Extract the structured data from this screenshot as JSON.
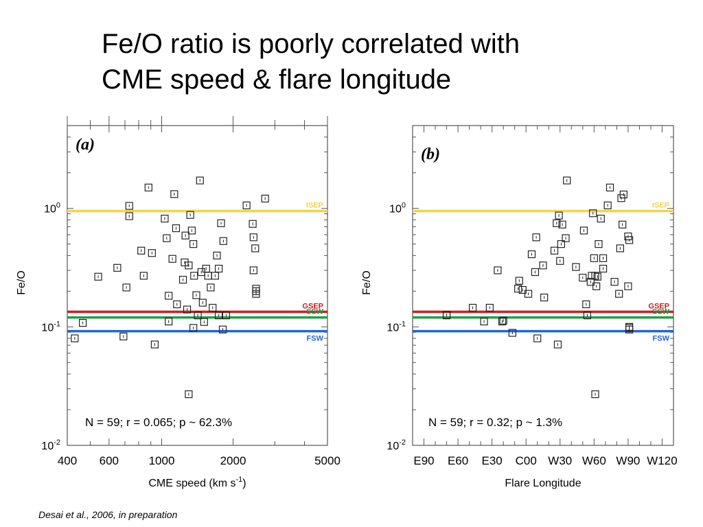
{
  "slide": {
    "title_line1": "Fe/O ratio is poorly correlated with",
    "title_line2": "CME speed & flare longitude",
    "citation": "Desai et al., 2006, in preparation"
  },
  "reference_lines": [
    {
      "name": "ISEP",
      "value": 0.95,
      "color": "#f5d24a"
    },
    {
      "name": "GSEP",
      "value": 0.134,
      "color": "#cc1f1f"
    },
    {
      "name": "SSW",
      "value": 0.12,
      "color": "#1f9e4a"
    },
    {
      "name": "FSW",
      "value": 0.092,
      "color": "#2266d8"
    }
  ],
  "chart_data": [
    {
      "type": "scatter",
      "panel_label": "(a)",
      "xlabel": "CME speed (km s",
      "xlabel_sup": "-1",
      "ylabel": "Fe/O",
      "xscale": "log",
      "yscale": "log",
      "xlim": [
        400,
        5000
      ],
      "ylim": [
        0.01,
        5
      ],
      "xticks": [
        {
          "v": 400,
          "label": "400"
        },
        {
          "v": 600,
          "label": "600"
        },
        {
          "v": 1000,
          "label": "1000"
        },
        {
          "v": 2000,
          "label": "2000"
        },
        {
          "v": 5000,
          "label": "5000"
        }
      ],
      "yticks": [
        {
          "v": 1,
          "base": "10",
          "exp": "0"
        },
        {
          "v": 0.1,
          "base": "10",
          "exp": "-1"
        },
        {
          "v": 0.01,
          "base": "10",
          "exp": "-2"
        }
      ],
      "stats": "N = 59; r = 0.065; p ~ 62.3%",
      "points": [
        [
          430,
          0.08
        ],
        [
          465,
          0.108
        ],
        [
          540,
          0.265
        ],
        [
          650,
          0.315
        ],
        [
          690,
          0.083
        ],
        [
          710,
          0.215
        ],
        [
          730,
          1.05
        ],
        [
          730,
          0.86
        ],
        [
          820,
          0.44
        ],
        [
          840,
          0.27
        ],
        [
          880,
          1.5
        ],
        [
          910,
          0.42
        ],
        [
          935,
          0.071
        ],
        [
          1030,
          0.82
        ],
        [
          1050,
          0.56
        ],
        [
          1070,
          0.183
        ],
        [
          1070,
          0.111
        ],
        [
          1110,
          0.375
        ],
        [
          1130,
          1.32
        ],
        [
          1150,
          0.68
        ],
        [
          1160,
          0.155
        ],
        [
          1230,
          0.25
        ],
        [
          1250,
          0.35
        ],
        [
          1260,
          0.59
        ],
        [
          1280,
          0.14
        ],
        [
          1300,
          0.33
        ],
        [
          1300,
          0.027
        ],
        [
          1320,
          0.88
        ],
        [
          1340,
          0.65
        ],
        [
          1360,
          0.5
        ],
        [
          1360,
          0.098
        ],
        [
          1370,
          0.27
        ],
        [
          1400,
          0.185
        ],
        [
          1420,
          0.125
        ],
        [
          1450,
          1.72
        ],
        [
          1470,
          0.29
        ],
        [
          1490,
          0.16
        ],
        [
          1510,
          0.11
        ],
        [
          1540,
          0.31
        ],
        [
          1570,
          0.27
        ],
        [
          1610,
          0.215
        ],
        [
          1640,
          0.145
        ],
        [
          1680,
          0.27
        ],
        [
          1710,
          0.4
        ],
        [
          1740,
          0.125
        ],
        [
          1740,
          0.31
        ],
        [
          1780,
          0.75
        ],
        [
          1820,
          0.53
        ],
        [
          1810,
          0.095
        ],
        [
          1870,
          0.125
        ],
        [
          2280,
          1.06
        ],
        [
          2420,
          0.74
        ],
        [
          2440,
          0.57
        ],
        [
          2440,
          0.3
        ],
        [
          2500,
          0.21
        ],
        [
          2500,
          0.2
        ],
        [
          2500,
          0.19
        ],
        [
          2480,
          0.46
        ],
        [
          2730,
          1.21
        ]
      ]
    },
    {
      "type": "scatter",
      "panel_label": "(b)",
      "xlabel": "Flare Longitude",
      "ylabel": "Fe/O",
      "xscale": "linear",
      "yscale": "log",
      "xlim": [
        -100,
        130
      ],
      "ylim": [
        0.01,
        5
      ],
      "xticks": [
        {
          "v": -90,
          "label": "E90"
        },
        {
          "v": -60,
          "label": "E60"
        },
        {
          "v": -30,
          "label": "E30"
        },
        {
          "v": 0,
          "label": "C00"
        },
        {
          "v": 30,
          "label": "W30"
        },
        {
          "v": 60,
          "label": "W60"
        },
        {
          "v": 90,
          "label": "W90"
        },
        {
          "v": 120,
          "label": "W120"
        }
      ],
      "yticks": [
        {
          "v": 1,
          "base": "10",
          "exp": "0"
        },
        {
          "v": 0.1,
          "base": "10",
          "exp": "-1"
        },
        {
          "v": 0.01,
          "base": "10",
          "exp": "-2"
        }
      ],
      "stats": "N = 59; r = 0.32; p ~ 1.3%",
      "points": [
        [
          -70,
          0.125
        ],
        [
          -70,
          0.126
        ],
        [
          -47,
          0.145
        ],
        [
          -37,
          0.111
        ],
        [
          -32,
          0.145
        ],
        [
          -25,
          0.3
        ],
        [
          -21,
          0.111
        ],
        [
          -20,
          0.113
        ],
        [
          -12,
          0.089
        ],
        [
          -7,
          0.21
        ],
        [
          -6,
          0.245
        ],
        [
          -3,
          0.205
        ],
        [
          2,
          0.19
        ],
        [
          5,
          0.41
        ],
        [
          8,
          0.29
        ],
        [
          9,
          0.57
        ],
        [
          10,
          0.08
        ],
        [
          15,
          0.33
        ],
        [
          16,
          0.177
        ],
        [
          25,
          0.44
        ],
        [
          27,
          0.75
        ],
        [
          28,
          0.071
        ],
        [
          29,
          0.87
        ],
        [
          30,
          0.36
        ],
        [
          31,
          0.5
        ],
        [
          32,
          0.73
        ],
        [
          35,
          0.56
        ],
        [
          36,
          1.72
        ],
        [
          44,
          0.32
        ],
        [
          50,
          0.26
        ],
        [
          51,
          0.65
        ],
        [
          53,
          0.155
        ],
        [
          54,
          0.125
        ],
        [
          57,
          0.24
        ],
        [
          58,
          0.27
        ],
        [
          59,
          0.91
        ],
        [
          60,
          0.38
        ],
        [
          61,
          0.027
        ],
        [
          61,
          0.27
        ],
        [
          62,
          0.22
        ],
        [
          63,
          0.265
        ],
        [
          64,
          0.5
        ],
        [
          66,
          0.82
        ],
        [
          68,
          0.31
        ],
        [
          68,
          0.38
        ],
        [
          72,
          1.06
        ],
        [
          74,
          1.5
        ],
        [
          78,
          0.24
        ],
        [
          82,
          0.19
        ],
        [
          83,
          0.46
        ],
        [
          84,
          1.22
        ],
        [
          85,
          0.73
        ],
        [
          86,
          1.31
        ],
        [
          90,
          0.22
        ],
        [
          90,
          0.58
        ],
        [
          91,
          0.54
        ],
        [
          91,
          0.095
        ],
        [
          91,
          0.098
        ],
        [
          91,
          0.1
        ]
      ]
    }
  ]
}
